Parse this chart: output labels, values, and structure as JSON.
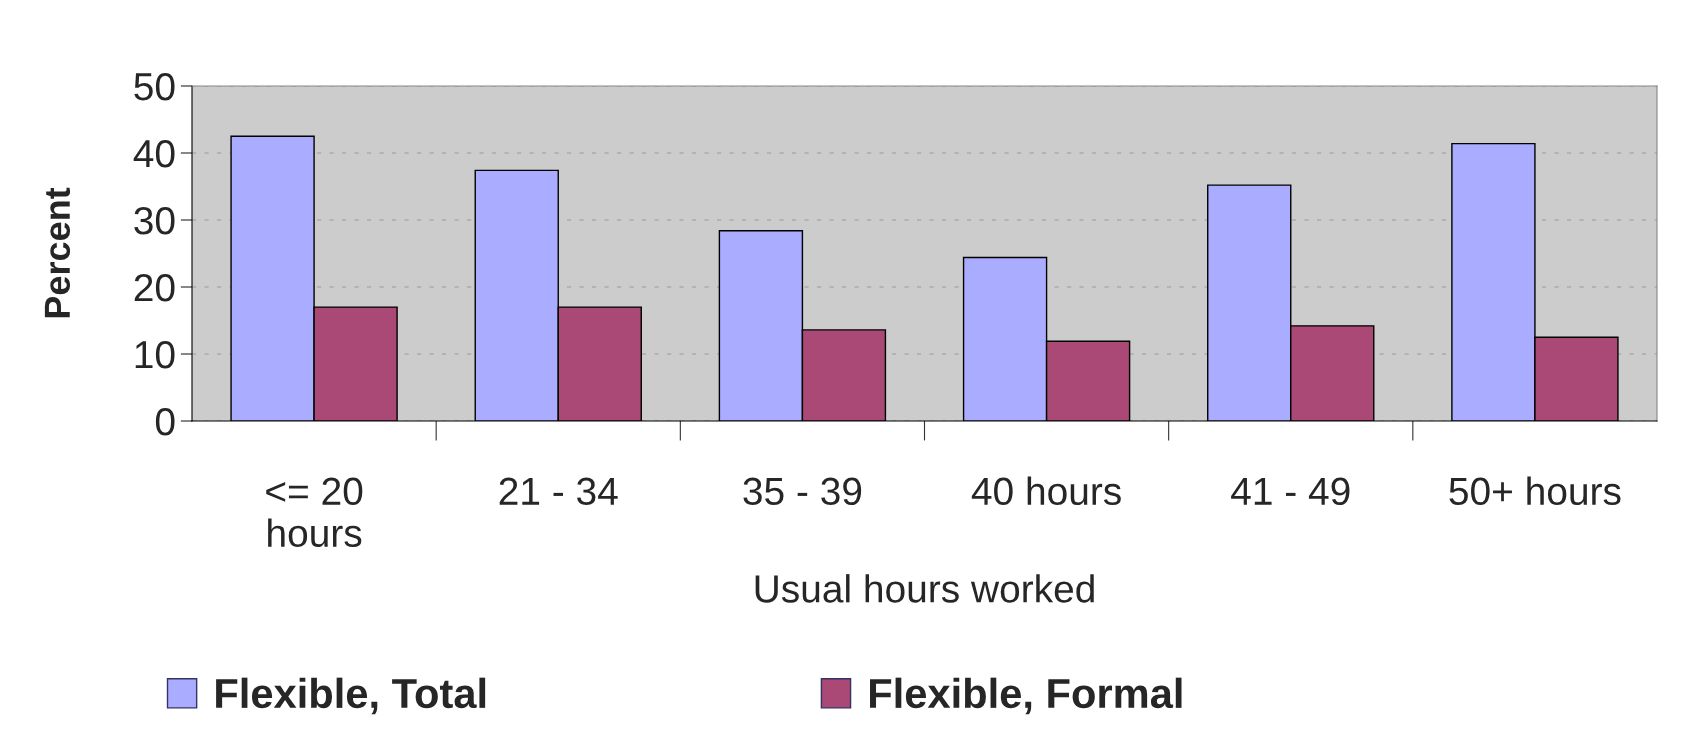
{
  "chart_data": {
    "type": "bar",
    "xlabel": "Usual hours worked",
    "ylabel": "Percent",
    "categories": [
      "<= 20\nhours",
      "21 - 34",
      "35 - 39",
      "40 hours",
      "41 - 49",
      "50+ hours"
    ],
    "series": [
      {
        "name": "Flexible, Total",
        "color": "#a9acff",
        "values": [
          42.5,
          37.4,
          28.4,
          24.4,
          35.2,
          41.4
        ]
      },
      {
        "name": "Flexible, Formal",
        "color": "#aa4975",
        "values": [
          17.0,
          17.0,
          13.6,
          11.9,
          14.2,
          12.5
        ]
      }
    ],
    "ylim": [
      0,
      50
    ],
    "yticks": [
      0,
      10,
      20,
      30,
      40,
      50
    ],
    "grid": "y",
    "legend": "bottom"
  }
}
